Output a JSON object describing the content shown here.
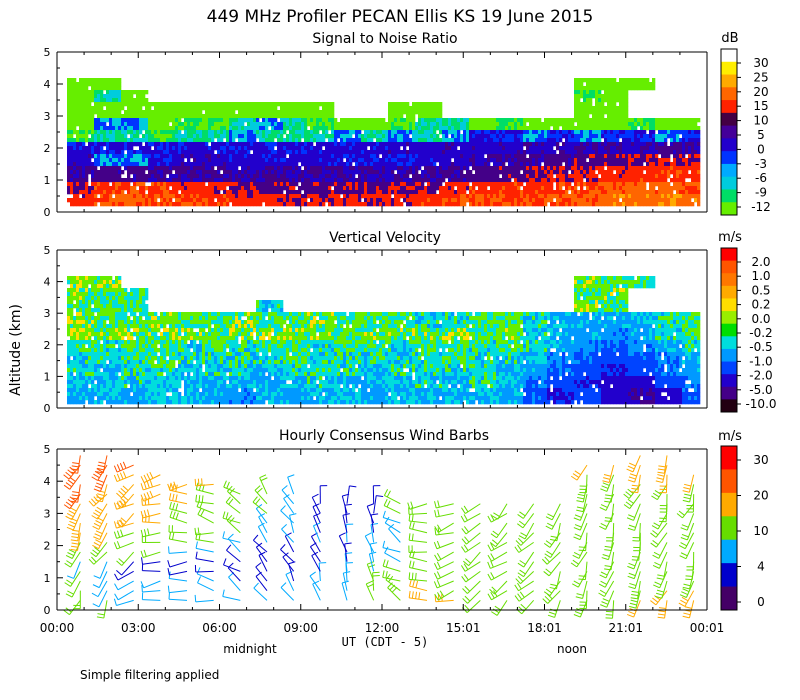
{
  "figure": {
    "title": "449 MHz Profiler PECAN Ellis KS 19 June 2015",
    "ylabel": "Altitude (km)",
    "xlabel": "UT  (CDT - 5)",
    "x_ticks": [
      "00:00",
      "03:00",
      "06:00",
      "09:00",
      "12:00",
      "15:01",
      "18:01",
      "21:01",
      "00:01"
    ],
    "day_labels": [
      "midnight",
      "noon"
    ],
    "y_ticks": [
      "0",
      "1",
      "2",
      "3",
      "4",
      "5"
    ],
    "footnote": "Simple filtering applied"
  },
  "colors": {
    "snr": [
      "#66ee00",
      "#00dd66",
      "#00ccdd",
      "#00aaff",
      "#0033ff",
      "#2200cc",
      "#440099",
      "#440044",
      "#ff2200",
      "#ff6600",
      "#ffaa00",
      "#ffee00",
      "#ffffff"
    ],
    "vv": [
      "#220011",
      "#440088",
      "#2200cc",
      "#0044ff",
      "#0099ff",
      "#00dddd",
      "#00dd00",
      "#99ee00",
      "#ffdd00",
      "#ffaa00",
      "#ff7700",
      "#ff5500",
      "#ff0000"
    ],
    "wind": [
      "#440066",
      "#0000cc",
      "#00aaff",
      "#66dd00",
      "#ffaa00",
      "#ff5500",
      "#ff0000"
    ]
  },
  "chart_data": [
    {
      "type": "heatmap",
      "id": "snr",
      "title": "Signal to Noise Ratio",
      "units": "dB",
      "colorbar_labels": [
        "30",
        "25",
        "20",
        "15",
        "10",
        "5",
        "0",
        "-3",
        "-6",
        "-9",
        "-12"
      ],
      "xlim": [
        0,
        24
      ],
      "ylim": [
        0,
        5
      ],
      "ylabel": "Altitude (km)",
      "rows": [
        {
          "alt": 0.45,
          "values": [
            12,
            16,
            16,
            16,
            14,
            14,
            12,
            12,
            11,
            11,
            11,
            11,
            11,
            14,
            14,
            15,
            15,
            15,
            16,
            16,
            18,
            18,
            19,
            18
          ]
        },
        {
          "alt": 0.85,
          "values": [
            10,
            14,
            14,
            14,
            12,
            12,
            10,
            8,
            8,
            9,
            9,
            9,
            9,
            10,
            12,
            13,
            13,
            14,
            14,
            15,
            16,
            17,
            17,
            16
          ]
        },
        {
          "alt": 1.25,
          "values": [
            6,
            7,
            7,
            6,
            6,
            6,
            5,
            5,
            5,
            5,
            5,
            5,
            5,
            6,
            6,
            7,
            8,
            9,
            10,
            11,
            12,
            13,
            14,
            13
          ]
        },
        {
          "alt": 1.65,
          "values": [
            3,
            -3,
            -3,
            1,
            3,
            3,
            2,
            2,
            2,
            2,
            1,
            1,
            0,
            2,
            3,
            4,
            5,
            6,
            7,
            8,
            9,
            10,
            10,
            10
          ]
        },
        {
          "alt": 2.05,
          "values": [
            1,
            1,
            1,
            1,
            1,
            1,
            1,
            1,
            1,
            2,
            2,
            2,
            3,
            3,
            3,
            3,
            3,
            4,
            4,
            5,
            5,
            5,
            6,
            6
          ]
        },
        {
          "alt": 2.45,
          "values": [
            -9,
            -6,
            -6,
            -9,
            -6,
            -6,
            -3,
            -6,
            -6,
            -6,
            -3,
            -6,
            -3,
            -6,
            -3,
            0,
            0,
            -3,
            0,
            -3,
            0,
            0,
            -3,
            0
          ]
        },
        {
          "alt": 2.85,
          "values": [
            -12,
            -3,
            -3,
            -12,
            -9,
            -9,
            -6,
            -3,
            -6,
            -9,
            -12,
            -12,
            -9,
            -6,
            -6,
            -12,
            -9,
            -12,
            -12,
            -12,
            -12,
            -9,
            -12,
            -12
          ]
        },
        {
          "alt": 3.25,
          "values": [
            -12,
            -12,
            -12,
            -12,
            -12,
            -12,
            -12,
            -12,
            -12,
            -12,
            null,
            null,
            -12,
            -12,
            null,
            null,
            null,
            null,
            null,
            -12,
            -12,
            null,
            null,
            null
          ]
        },
        {
          "alt": 3.65,
          "values": [
            -12,
            -6,
            -12,
            null,
            null,
            null,
            null,
            null,
            null,
            null,
            null,
            null,
            null,
            null,
            null,
            null,
            null,
            null,
            null,
            -9,
            -12,
            null,
            null,
            null
          ]
        },
        {
          "alt": 4.05,
          "values": [
            -12,
            -12,
            null,
            null,
            null,
            null,
            null,
            null,
            null,
            null,
            null,
            null,
            null,
            null,
            null,
            null,
            null,
            null,
            null,
            -12,
            -12,
            -12,
            null,
            null
          ]
        }
      ]
    },
    {
      "type": "heatmap",
      "id": "vertical_velocity",
      "title": "Vertical Velocity",
      "units": "m/s",
      "colorbar_labels": [
        "2.0",
        "1.0",
        "0.5",
        "0.2",
        "0.0",
        "-0.2",
        "-0.5",
        "-1.0",
        "-2.0",
        "-5.0",
        "-10.0"
      ],
      "xlim": [
        0,
        24
      ],
      "ylim": [
        0,
        5
      ],
      "ylabel": "Altitude (km)",
      "rows": [
        {
          "alt": 0.45,
          "values": [
            -0.3,
            -0.2,
            -0.3,
            -0.2,
            -0.2,
            -0.3,
            -0.4,
            -0.2,
            -0.3,
            -0.2,
            -0.2,
            -0.3,
            -0.2,
            -0.3,
            -0.2,
            -0.2,
            -0.3,
            -0.6,
            -1.0,
            -0.8,
            -1.5,
            -2.0,
            -1.2,
            -0.6
          ]
        },
        {
          "alt": 0.85,
          "values": [
            -0.2,
            -0.2,
            -0.1,
            -0.2,
            -0.2,
            -0.2,
            -0.2,
            -0.3,
            -0.2,
            -0.1,
            -0.2,
            -0.2,
            -0.2,
            -0.1,
            -0.2,
            -0.1,
            -0.2,
            -0.5,
            -0.8,
            -1.0,
            -1.5,
            -1.2,
            -0.8,
            -0.4
          ]
        },
        {
          "alt": 1.25,
          "values": [
            -0.1,
            -0.2,
            -0.1,
            -0.1,
            -0.2,
            -0.1,
            -0.1,
            -0.2,
            -0.1,
            -0.1,
            -0.1,
            -0.2,
            -0.1,
            -0.1,
            -0.1,
            -0.1,
            -0.2,
            -0.3,
            -0.6,
            -0.8,
            -1.0,
            -0.8,
            -0.5,
            -0.3
          ]
        },
        {
          "alt": 1.65,
          "values": [
            -0.1,
            -0.1,
            -0.1,
            0.0,
            -0.1,
            -0.1,
            -0.1,
            -0.1,
            0.0,
            -0.1,
            -0.1,
            -0.1,
            -0.1,
            -0.1,
            0.0,
            -0.1,
            -0.1,
            -0.2,
            -0.4,
            -0.6,
            -0.8,
            -0.6,
            -0.4,
            -0.2
          ]
        },
        {
          "alt": 2.05,
          "values": [
            0.0,
            -0.1,
            0.0,
            0.0,
            -0.1,
            0.0,
            -0.1,
            0.0,
            0.0,
            -0.1,
            0.0,
            0.0,
            -0.1,
            0.0,
            0.0,
            -0.1,
            0.0,
            -0.1,
            -0.3,
            -0.4,
            -0.6,
            -0.4,
            -0.3,
            -0.1
          ]
        },
        {
          "alt": 2.45,
          "values": [
            0.2,
            0.1,
            0.1,
            0.1,
            0.1,
            0.0,
            0.1,
            0.1,
            0.1,
            0.1,
            0.0,
            0.1,
            0.1,
            0.1,
            0.1,
            0.0,
            0.1,
            -0.1,
            -0.2,
            -0.3,
            -0.4,
            -0.2,
            -0.1,
            0.0
          ]
        },
        {
          "alt": 2.85,
          "values": [
            0.1,
            0.0,
            0.0,
            0.1,
            0.0,
            0.0,
            0.1,
            0.0,
            0.0,
            0.1,
            0.0,
            0.0,
            0.0,
            -0.1,
            -0.1,
            0.0,
            0.0,
            -0.1,
            -0.2,
            -0.3,
            -0.3,
            -0.2,
            -0.1,
            0.0
          ]
        },
        {
          "alt": 3.25,
          "values": [
            0.0,
            0.0,
            0.0,
            null,
            null,
            null,
            null,
            -0.1,
            null,
            null,
            null,
            null,
            null,
            null,
            null,
            null,
            null,
            null,
            null,
            0.1,
            0.0,
            null,
            null,
            null
          ]
        },
        {
          "alt": 3.65,
          "values": [
            0.1,
            0.0,
            0.0,
            null,
            null,
            null,
            null,
            null,
            null,
            null,
            null,
            null,
            null,
            null,
            null,
            null,
            null,
            null,
            null,
            0.0,
            0.1,
            null,
            null,
            null
          ]
        },
        {
          "alt": 4.05,
          "values": [
            0.1,
            0.1,
            null,
            null,
            null,
            null,
            null,
            null,
            null,
            null,
            null,
            null,
            null,
            null,
            null,
            null,
            null,
            null,
            null,
            0.1,
            0.0,
            0.0,
            null,
            null
          ]
        }
      ]
    },
    {
      "type": "wind_barbs",
      "id": "wind_barbs",
      "title": "Hourly Consensus Wind Barbs",
      "units": "m/s",
      "colorbar_labels": [
        "30",
        "20",
        "10",
        "4",
        "0"
      ],
      "xlim": [
        0,
        24
      ],
      "ylim": [
        0,
        5
      ],
      "ylabel": "Altitude (km)",
      "hours": [
        0.5,
        1.5,
        2.5,
        3.5,
        4.5,
        5.5,
        6.5,
        7.5,
        8.5,
        9.5,
        10.5,
        11.5,
        12.5,
        13.5,
        14.5,
        15.5,
        16.5,
        17.5,
        18.5,
        19.5,
        20.5,
        21.5,
        22.5,
        23.5
      ],
      "altitudes": [
        0.3,
        0.6,
        0.9,
        1.2,
        1.5,
        1.8,
        2.1,
        2.4,
        2.7,
        3.0,
        3.3,
        3.6,
        3.9,
        4.2,
        4.5,
        4.8
      ],
      "speeds": [
        [
          12,
          8,
          6,
          6,
          6,
          6,
          5,
          4,
          5,
          6,
          7,
          12,
          14,
          18,
          16,
          12,
          14,
          14,
          14,
          14,
          14,
          16,
          18,
          18
        ],
        [
          11,
          7,
          5,
          5,
          5,
          5,
          4,
          3,
          4,
          5,
          6,
          10,
          12,
          16,
          14,
          12,
          13,
          13,
          13,
          13,
          13,
          14,
          16,
          16
        ],
        [
          10,
          6,
          4,
          4,
          4,
          4,
          3,
          3,
          3,
          4,
          5,
          8,
          10,
          14,
          12,
          11,
          12,
          12,
          12,
          12,
          12,
          13,
          14,
          14
        ],
        [
          8,
          5,
          3,
          3,
          3,
          3,
          2,
          2,
          3,
          3,
          4,
          6,
          8,
          12,
          11,
          10,
          11,
          11,
          11,
          11,
          11,
          12,
          12,
          12
        ],
        [
          6,
          4,
          3,
          3,
          3,
          3,
          2,
          2,
          2,
          3,
          3,
          5,
          7,
          10,
          10,
          9,
          10,
          10,
          10,
          10,
          10,
          11,
          11,
          11
        ],
        [
          10,
          9,
          8,
          8,
          7,
          6,
          4,
          3,
          3,
          3,
          3,
          4,
          6,
          9,
          9,
          9,
          9,
          9,
          9,
          9,
          9,
          10,
          10,
          10
        ],
        [
          14,
          13,
          12,
          11,
          10,
          9,
          7,
          5,
          4,
          4,
          4,
          4,
          6,
          9,
          9,
          9,
          9,
          9,
          9,
          9,
          9,
          9,
          9,
          9
        ],
        [
          16,
          15,
          14,
          13,
          12,
          10,
          8,
          6,
          4,
          3,
          3,
          3,
          6,
          9,
          9,
          9,
          9,
          9,
          9,
          9,
          9,
          9,
          9,
          9
        ],
        [
          18,
          17,
          16,
          15,
          13,
          11,
          9,
          7,
          5,
          3,
          3,
          3,
          7,
          10,
          10,
          10,
          10,
          10,
          10,
          10,
          10,
          10,
          10,
          10
        ],
        [
          20,
          18,
          17,
          16,
          14,
          12,
          10,
          8,
          6,
          3,
          3,
          3,
          8,
          11,
          11,
          11,
          11,
          11,
          11,
          11,
          11,
          11,
          11,
          11
        ],
        [
          21,
          19,
          18,
          17,
          15,
          13,
          11,
          9,
          6,
          3,
          3,
          3,
          9,
          12,
          12,
          12,
          12,
          12,
          12,
          12,
          12,
          12,
          12,
          12
        ],
        [
          22,
          20,
          19,
          18,
          16,
          14,
          12,
          10,
          7,
          null,
          null,
          null,
          null,
          null,
          null,
          null,
          null,
          null,
          null,
          12,
          12,
          13,
          13,
          13
        ],
        [
          23,
          21,
          20,
          19,
          17,
          15,
          null,
          null,
          null,
          null,
          null,
          null,
          null,
          null,
          null,
          null,
          null,
          null,
          null,
          13,
          13,
          14,
          14,
          14
        ],
        [
          24,
          22,
          21,
          20,
          null,
          null,
          null,
          null,
          null,
          null,
          null,
          null,
          null,
          null,
          null,
          null,
          null,
          null,
          null,
          14,
          14,
          15,
          15,
          15
        ],
        [
          24,
          23,
          22,
          null,
          null,
          null,
          null,
          null,
          null,
          null,
          null,
          null,
          null,
          null,
          null,
          null,
          null,
          null,
          null,
          15,
          15,
          16,
          16,
          null
        ],
        [
          25,
          24,
          null,
          null,
          null,
          null,
          null,
          null,
          null,
          null,
          null,
          null,
          null,
          null,
          null,
          null,
          null,
          null,
          null,
          null,
          null,
          16,
          17,
          null
        ]
      ],
      "directions_deg": [
        200,
        210,
        240,
        260,
        270,
        280,
        300,
        320,
        330,
        340,
        350,
        350,
        300,
        270,
        250,
        240,
        230,
        220,
        210,
        200,
        200,
        200,
        200,
        200
      ]
    }
  ]
}
